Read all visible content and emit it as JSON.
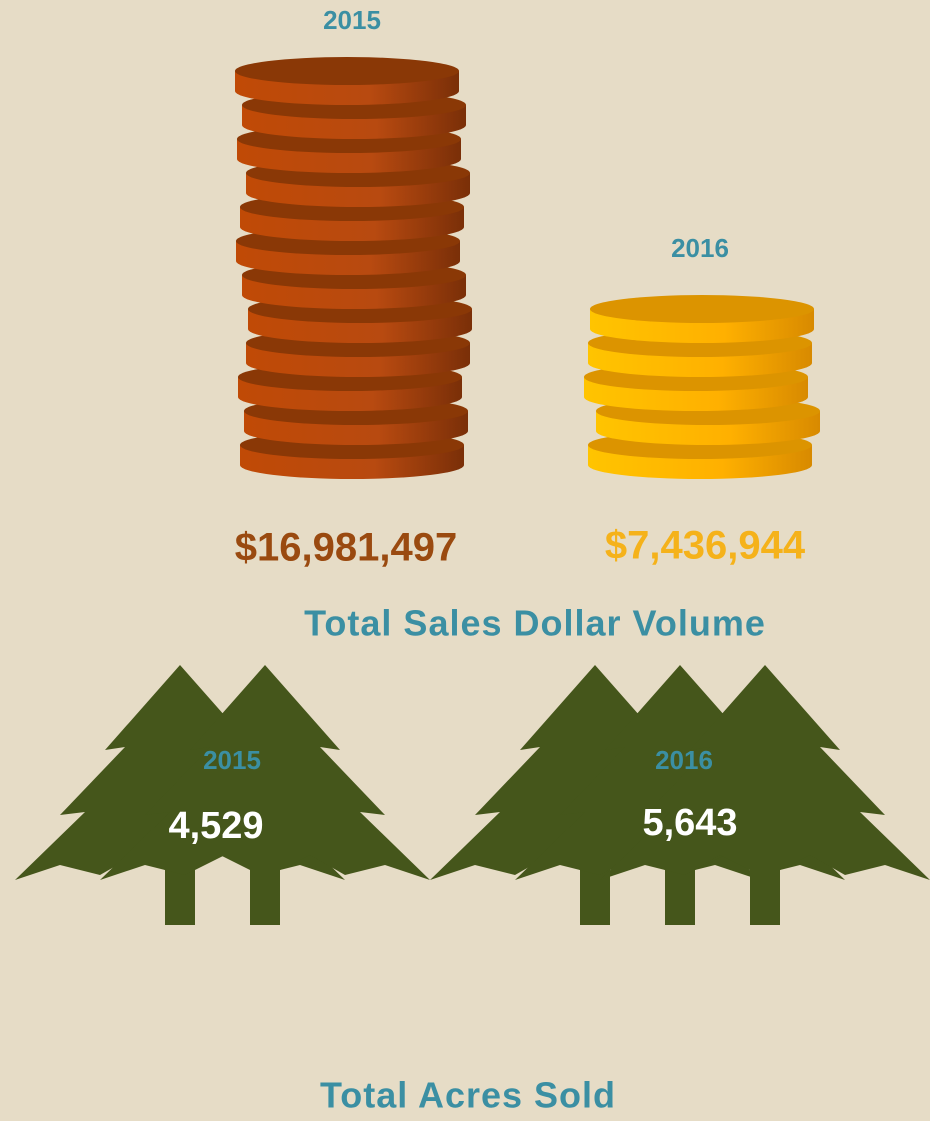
{
  "sales": {
    "title": "Total Sales Dollar Volume",
    "years": [
      "2015",
      "2016"
    ],
    "amounts": [
      "$16,981,497",
      "$7,436,944"
    ]
  },
  "acres": {
    "title": "Total Acres Sold",
    "years": [
      "2015",
      "2016"
    ],
    "amounts": [
      "4,529",
      "5,643"
    ]
  }
}
